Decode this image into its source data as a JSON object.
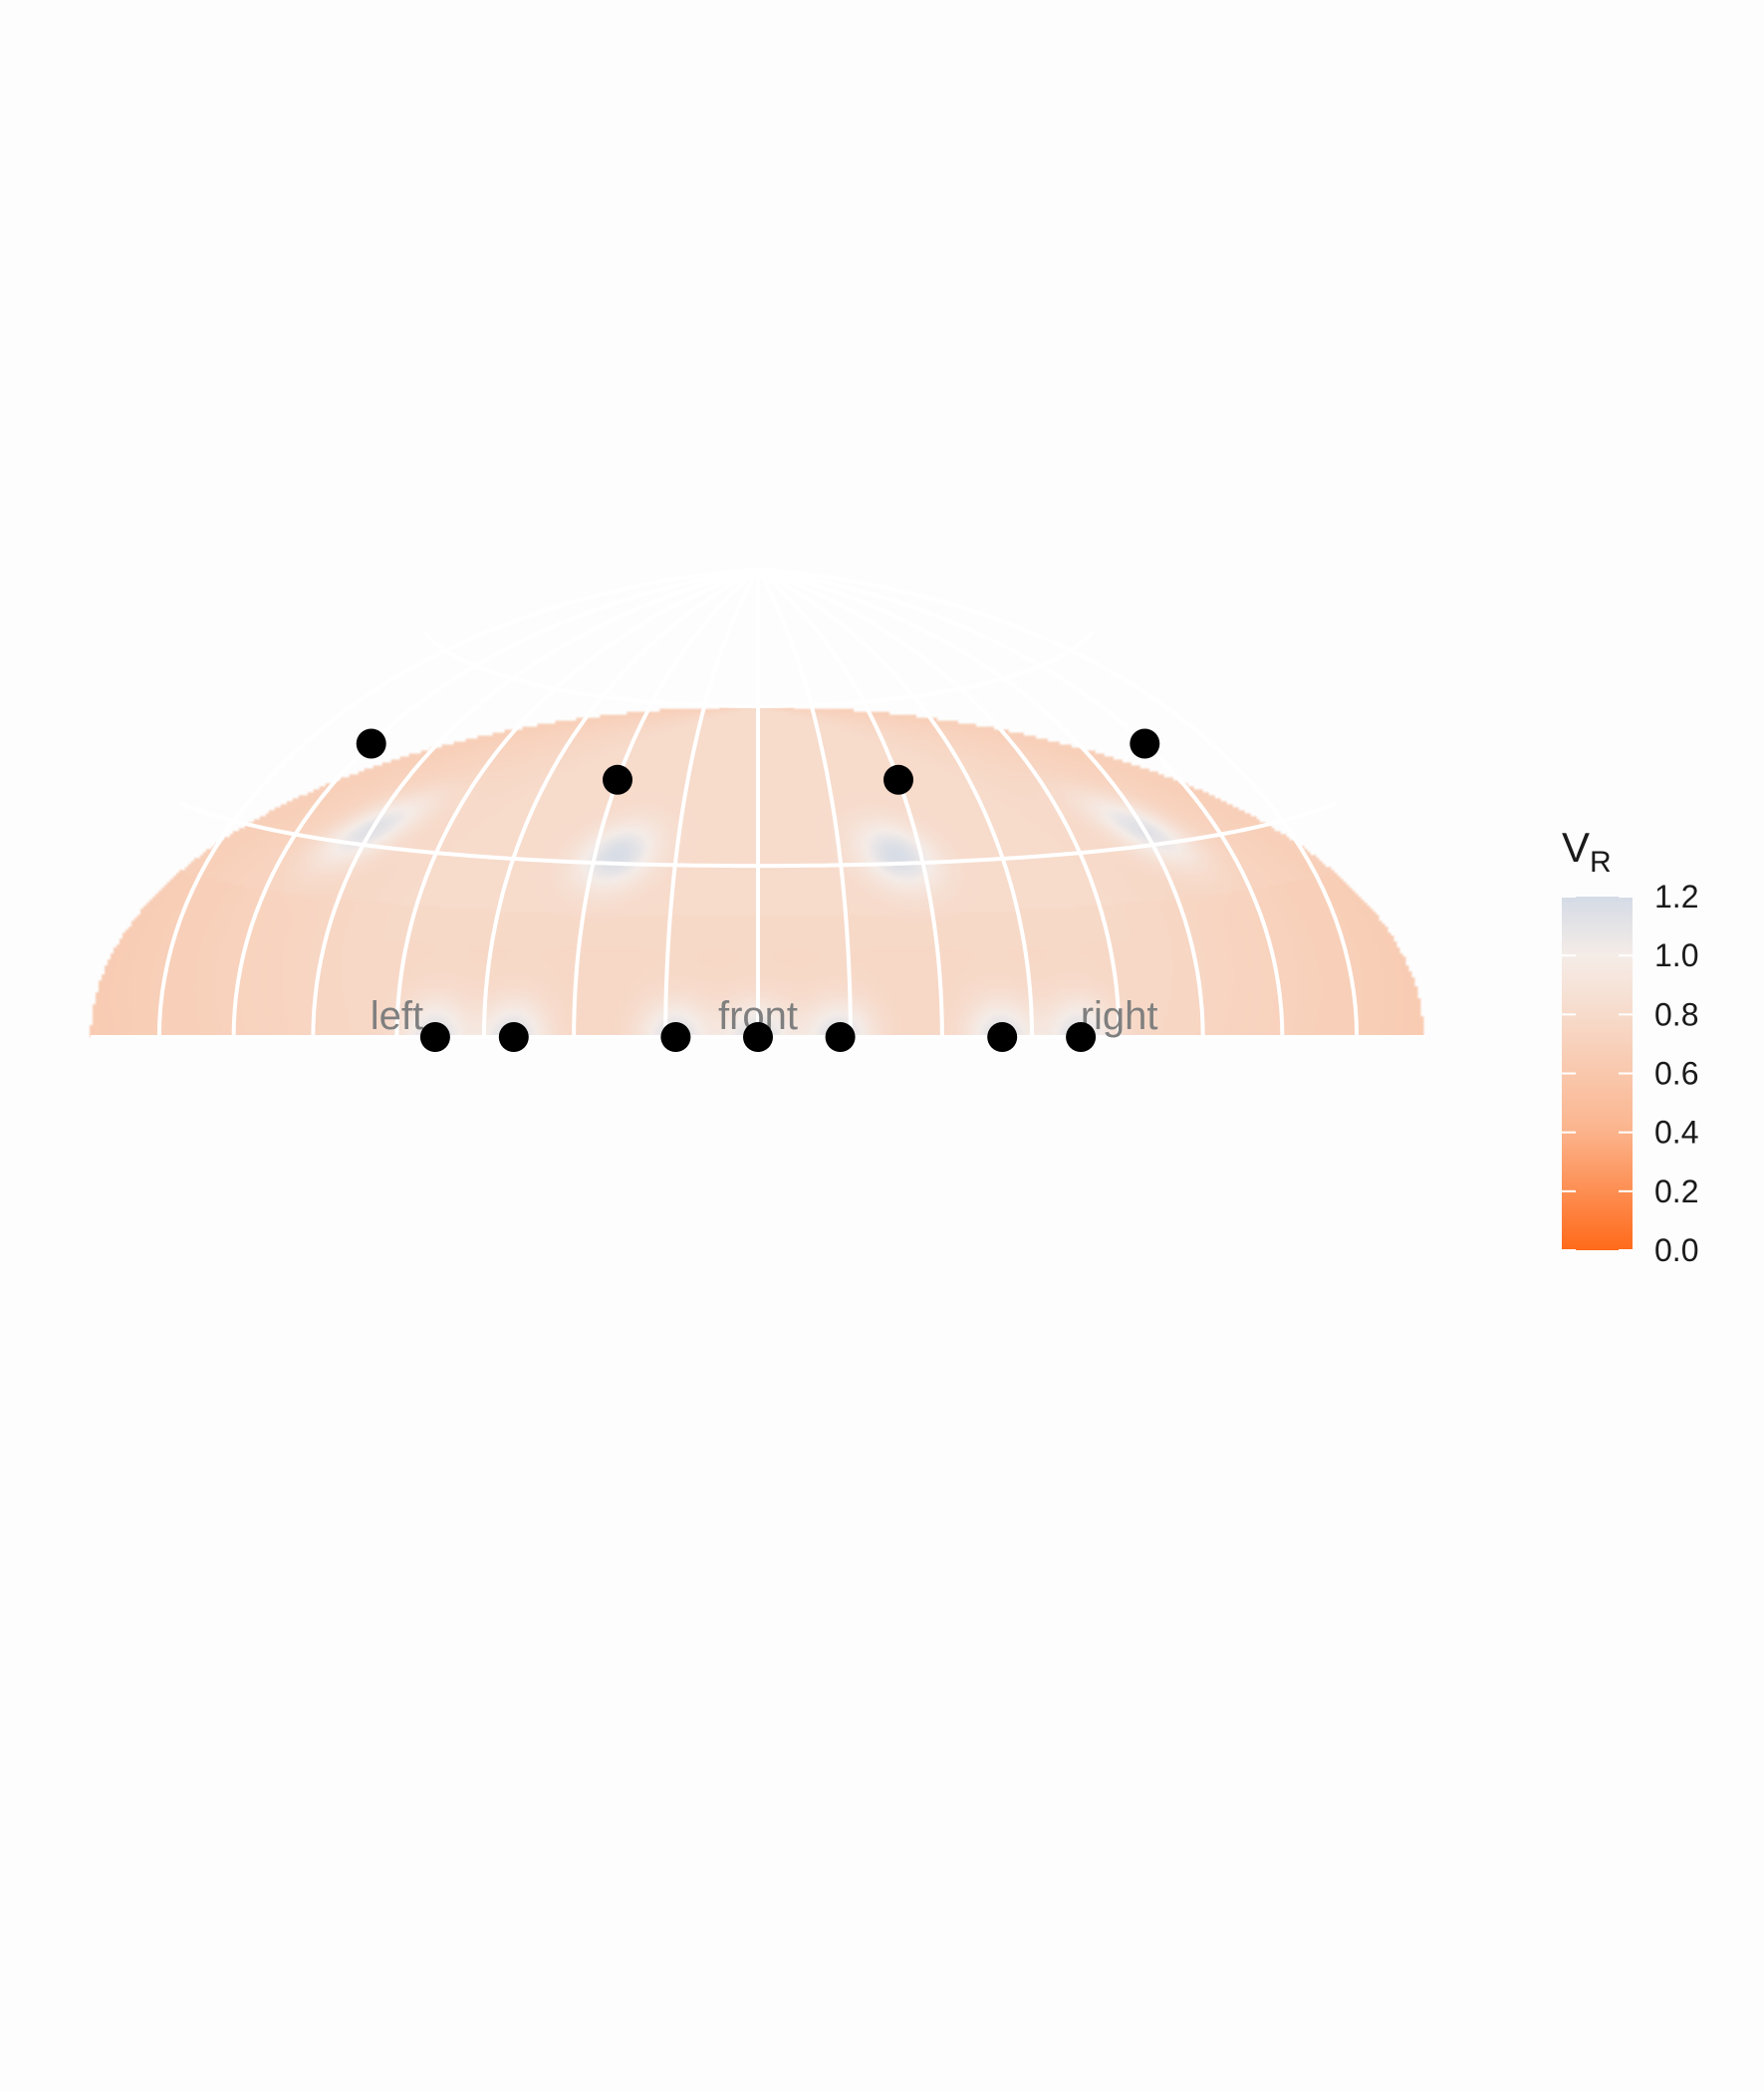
{
  "chart_data": {
    "type": "heatmap",
    "title": "",
    "projection": "upper hemisphere, equal-area map",
    "direction_labels": [
      "left",
      "front",
      "right"
    ],
    "colorbar": {
      "title_main": "V",
      "title_sub": "R",
      "range": [
        0.0,
        1.2
      ],
      "ticks": [
        "0.0",
        "0.2",
        "0.4",
        "0.6",
        "0.8",
        "1.0",
        "1.2"
      ],
      "low_color": "#ff6a1a",
      "mid_color": "#f5ece7",
      "high_color": "#d4dbe6"
    },
    "grid": {
      "azimuth_step_deg": 22.5,
      "elevation_lines_deg": [
        0,
        30,
        60
      ],
      "color": "#ffffff"
    },
    "loudspeakers": {
      "elevation_0": {
        "azimuth_deg": [
          -80,
          -60,
          -20,
          0,
          20,
          60,
          80
        ]
      },
      "elevation_45": {
        "azimuth_deg": [
          -135,
          -45,
          45,
          135
        ]
      }
    }
  }
}
